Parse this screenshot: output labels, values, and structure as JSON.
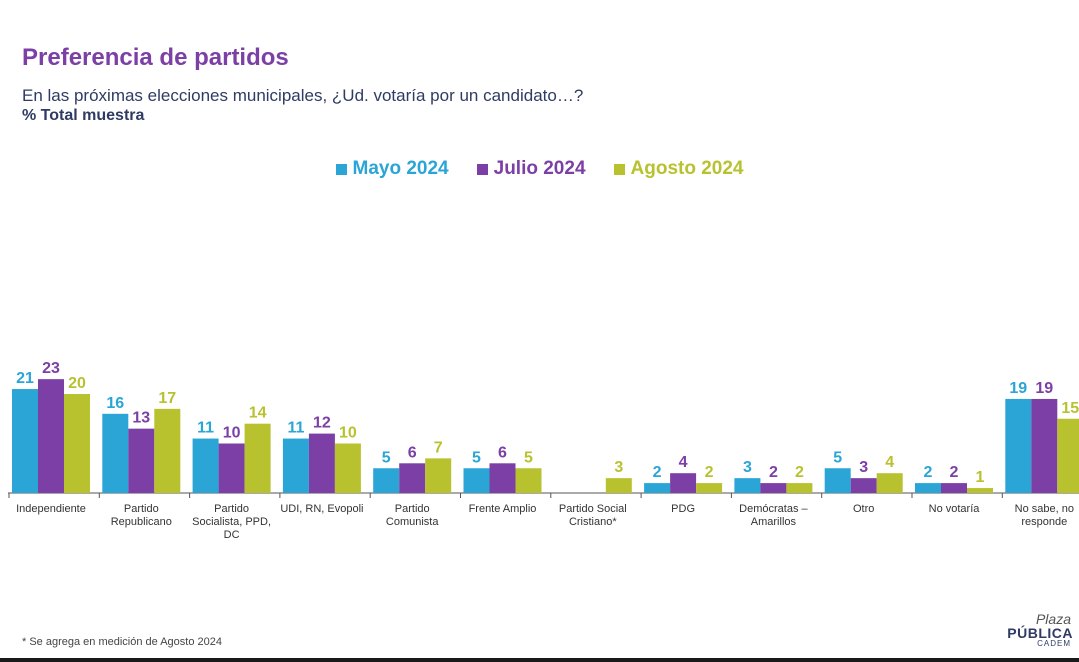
{
  "header": {
    "title": "Preferencia de partidos",
    "subtitle": "En las próximas elecciones municipales, ¿Ud. votaría por un candidato…?",
    "sample": "% Total muestra"
  },
  "colors": {
    "mayo": "#2aa5d6",
    "julio": "#7b3fa6",
    "agosto": "#b8c22e",
    "axis": "#555555"
  },
  "chart_data": {
    "type": "bar",
    "title": "Preferencia de partidos",
    "xlabel": "",
    "ylabel": "",
    "ylim": [
      0,
      25
    ],
    "legend_position": "top-center",
    "categories": [
      "Independiente",
      "Partido Republicano",
      "Partido Socialista, PPD, DC",
      "UDI, RN, Evopoli",
      "Partido Comunista",
      "Frente Amplio",
      "Partido Social Cristiano*",
      "PDG",
      "Demócratas – Amarillos",
      "Otro",
      "No votaría",
      "No sabe, no responde"
    ],
    "category_label_lines": [
      [
        "Independiente"
      ],
      [
        "Partido",
        "Republicano"
      ],
      [
        "Partido",
        "Socialista, PPD,",
        "DC"
      ],
      [
        "UDI, RN, Evopoli"
      ],
      [
        "Partido",
        "Comunista"
      ],
      [
        "Frente Amplio"
      ],
      [
        "Partido Social",
        "Cristiano*"
      ],
      [
        "PDG"
      ],
      [
        "Demócratas –",
        "Amarillos"
      ],
      [
        "Otro"
      ],
      [
        "No votaría"
      ],
      [
        "No sabe, no",
        "responde"
      ]
    ],
    "series": [
      {
        "name": "Mayo 2024",
        "key": "mayo",
        "values": [
          21,
          16,
          11,
          11,
          5,
          5,
          null,
          2,
          3,
          5,
          2,
          19
        ]
      },
      {
        "name": "Julio 2024",
        "key": "julio",
        "values": [
          23,
          13,
          10,
          12,
          6,
          6,
          null,
          4,
          2,
          3,
          2,
          19
        ]
      },
      {
        "name": "Agosto 2024",
        "key": "agosto",
        "values": [
          20,
          17,
          14,
          10,
          7,
          5,
          3,
          2,
          2,
          4,
          1,
          15
        ]
      }
    ]
  },
  "footnote": "* Se agrega en medición de Agosto 2024",
  "logo": {
    "line1": "Plaza",
    "line2": "PÚBLICA",
    "line3": "CADEM"
  }
}
